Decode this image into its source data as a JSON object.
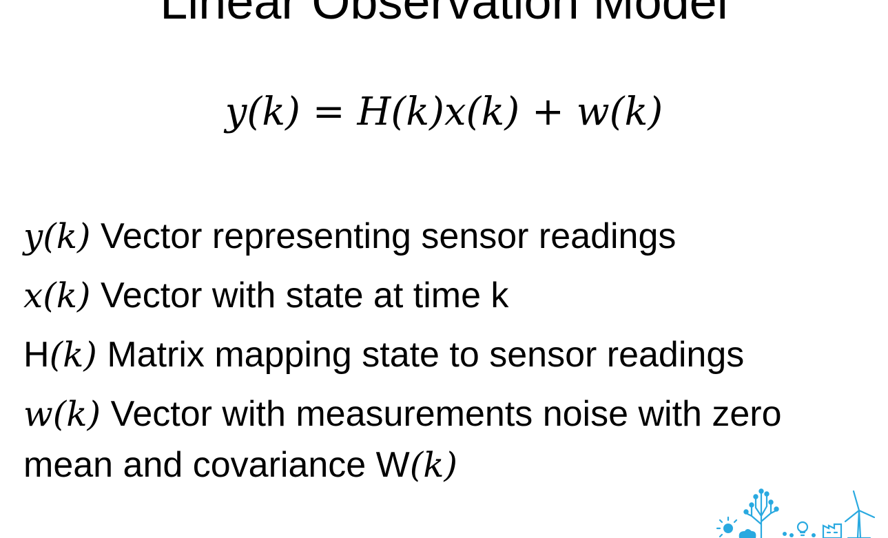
{
  "slide": {
    "title": "Linear Observation Model",
    "equation": "y(k) = H(k)x(k) + w(k)",
    "definitions": [
      {
        "symbol": "y(k)",
        "description": "Vector representing sensor readings"
      },
      {
        "symbol": "x(k)",
        "description": "Vector with state at time k"
      },
      {
        "symbol_prefix": "H",
        "symbol_rest": "(k)",
        "description": "Matrix mapping state to sensor readings"
      },
      {
        "symbol": "w(k)",
        "description": "Vector with measurements noise with zero mean and covariance",
        "suffix_prefix": "W",
        "suffix_rest": "(k)"
      }
    ]
  },
  "colors": {
    "text": "#000000",
    "background": "#ffffff",
    "logo": "#29a9e0"
  },
  "logo": {
    "icon": "city-energy-logo-icon"
  }
}
